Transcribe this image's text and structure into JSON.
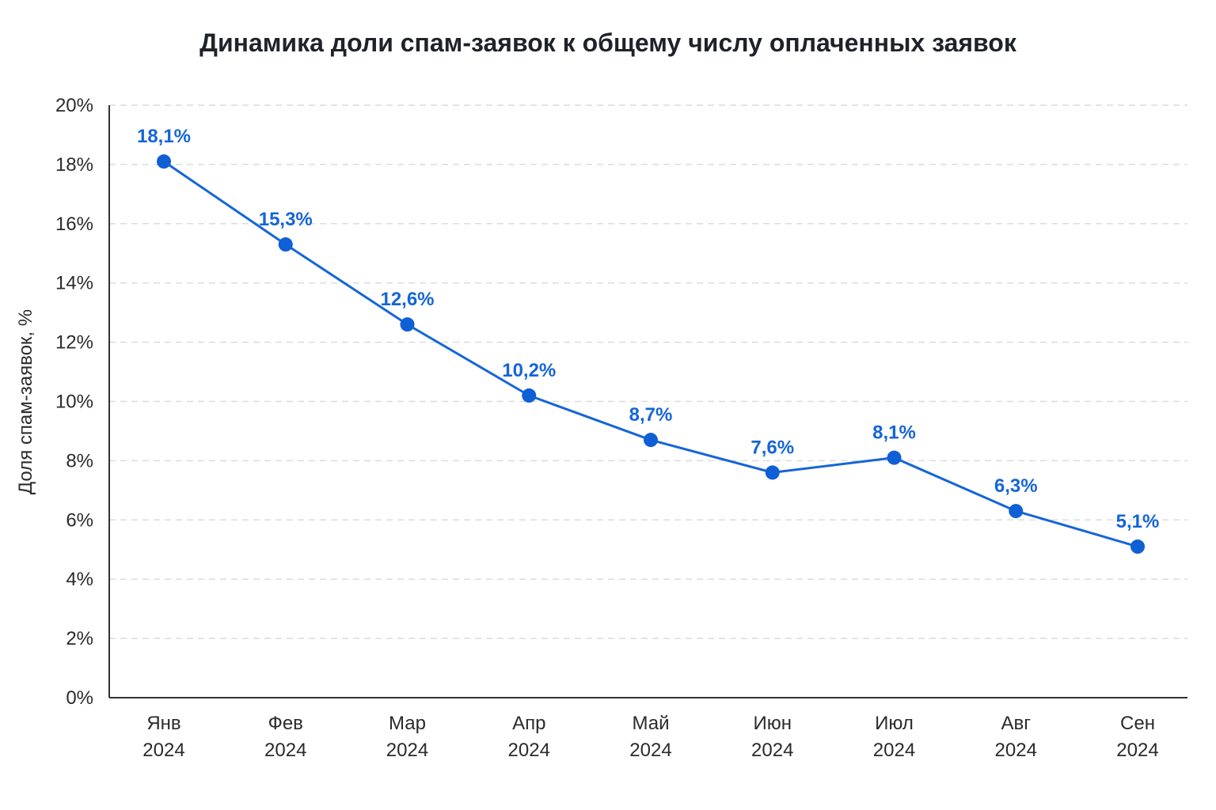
{
  "chart_data": {
    "type": "line",
    "title": "Динамика доли спам-заявок к общему числу оплаченных заявок",
    "xlabel": "",
    "ylabel": "Доля спам-заявок, %",
    "categories": [
      [
        "Янв",
        "2024"
      ],
      [
        "Фев",
        "2024"
      ],
      [
        "Мар",
        "2024"
      ],
      [
        "Апр",
        "2024"
      ],
      [
        "Май",
        "2024"
      ],
      [
        "Июн",
        "2024"
      ],
      [
        "Июл",
        "2024"
      ],
      [
        "Авг",
        "2024"
      ],
      [
        "Сен",
        "2024"
      ]
    ],
    "series": [
      {
        "values": [
          18.1,
          15.3,
          12.6,
          10.2,
          8.7,
          7.6,
          8.1,
          6.3,
          5.1
        ],
        "labels": [
          "18,1%",
          "15,3%",
          "12,6%",
          "10,2%",
          "8,7%",
          "7,6%",
          "8,1%",
          "6,3%",
          "5,1%"
        ]
      }
    ],
    "ylim": [
      0,
      20
    ],
    "yticks": [
      0,
      2,
      4,
      6,
      8,
      10,
      12,
      14,
      16,
      18,
      20
    ],
    "ytick_labels": [
      "0%",
      "2%",
      "4%",
      "6%",
      "8%",
      "10%",
      "12%",
      "14%",
      "16%",
      "18%",
      "20%"
    ],
    "grid": "horizontal dashed",
    "legend": "none",
    "colors": {
      "line": "#1565d8",
      "point": "#0f5fd6",
      "label": "#1565d8",
      "grid": "#dcdcdc",
      "axis": "#333333"
    }
  }
}
